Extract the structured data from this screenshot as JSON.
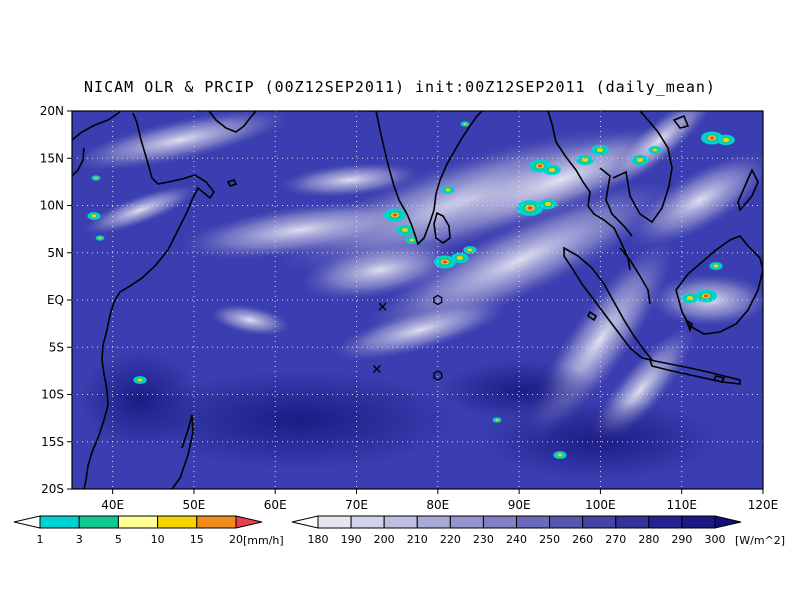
{
  "title": "NICAM OLR & PRCIP (00Z12SEP2011) init:00Z12SEP2011 (daily_mean)",
  "map": {
    "projection": "cylindrical equidistant",
    "lon_range": [
      35,
      120
    ],
    "lat_range": [
      -20,
      20
    ],
    "grid": "dotted",
    "lat_labels": [
      "20N",
      "15N",
      "10N",
      "5N",
      "EQ",
      "5S",
      "10S",
      "15S",
      "20S"
    ],
    "lon_labels": [
      "40E",
      "50E",
      "60E",
      "70E",
      "80E",
      "90E",
      "100E",
      "110E",
      "120E"
    ],
    "colors": {
      "ocean_background": "#3a3eb0",
      "coastline": "#000000"
    }
  },
  "markers": [
    {
      "symbol": "x",
      "lon": 73.2,
      "lat": -0.7
    },
    {
      "symbol": "x",
      "lon": 72.5,
      "lat": -7.3
    },
    {
      "symbol": "hexagon",
      "lon": 80,
      "lat": 0
    },
    {
      "symbol": "hexagon",
      "lon": 80,
      "lat": -8
    }
  ],
  "precip_colorbar": {
    "unit": "[mm/h]",
    "ticks": [
      "1",
      "3",
      "5",
      "10",
      "15",
      "20"
    ],
    "colors": [
      "#ffffff",
      "#00d2d2",
      "#10c890",
      "#ffff96",
      "#f5d300",
      "#f08c1e",
      "#ee3c50"
    ]
  },
  "olr_colorbar": {
    "unit": "[W/m^2]",
    "ticks": [
      "180",
      "190",
      "200",
      "210",
      "220",
      "230",
      "240",
      "250",
      "260",
      "270",
      "280",
      "290",
      "300"
    ],
    "colors": [
      "#ffffff",
      "#e6e6f0",
      "#d2d2e8",
      "#bebee0",
      "#aaaad6",
      "#9494cc",
      "#8080c2",
      "#6a6ab8",
      "#5656ae",
      "#4444a4",
      "#32329a",
      "#242490",
      "#1a1a84",
      "#101076"
    ]
  }
}
